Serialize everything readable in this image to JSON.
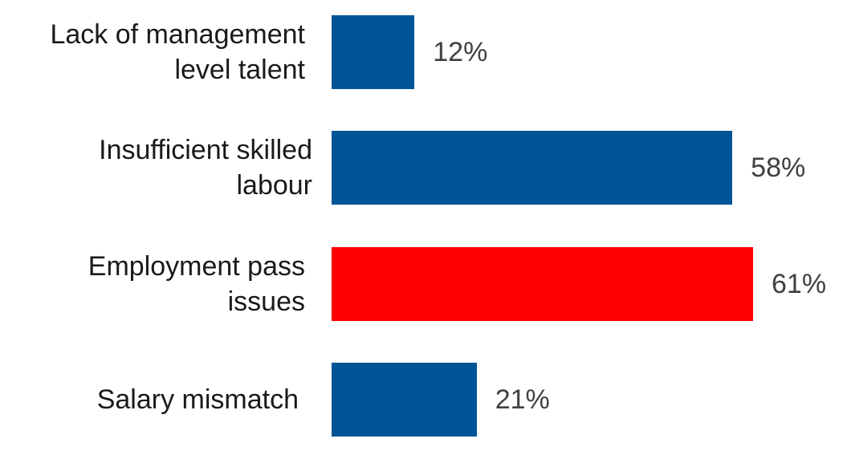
{
  "chart_data": {
    "type": "bar",
    "orientation": "horizontal",
    "categories": [
      "Lack of management level talent",
      "Insufficient skilled labour",
      "Employment pass issues",
      "Salary mismatch"
    ],
    "category_label_lines": [
      "Lack of management\nlevel talent",
      "Insufficient skilled\nlabour",
      "Employment pass\nissues",
      "Salary mismatch"
    ],
    "values": [
      12,
      58,
      61,
      21
    ],
    "value_labels": [
      "12%",
      "58%",
      "61%",
      "21%"
    ],
    "unit": "%",
    "xlim": [
      0,
      61
    ],
    "grid": false,
    "legend": "none",
    "bar_colors": [
      "#005596",
      "#005596",
      "#ff0000",
      "#005596"
    ]
  }
}
